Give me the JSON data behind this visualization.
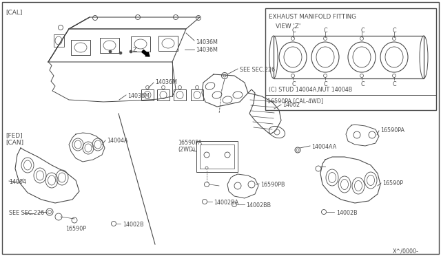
{
  "bg_color": "#ffffff",
  "line_color": "#4a4a4a",
  "box_bg": "#ffffff",
  "labels": {
    "cal_tag": "[CAL]",
    "fed_can_tag": "[FED]\n[CAN]",
    "view_z_title": "EXHAUST MANIFOLD FITTING",
    "view_z_sub": "VIEW 'Z'",
    "view_z_note": "(C) STUD 14004A,NUT 14004B",
    "cal_4wd": "16590PA [CAL-4WD]",
    "part_14036M_a": "14036M",
    "part_14036M_b": "14036M",
    "part_14036M_c": "14036M",
    "part_14036M_d": "14036M",
    "part_Z": "Z",
    "part_14002": "14002",
    "part_14002B_l": "14002B",
    "part_14002B_r": "14002B",
    "part_14002BA": "14002BA",
    "part_14002BB": "14002BB",
    "part_14004": "14004",
    "part_14004A": "14004A",
    "part_14004AA": "14004AA",
    "part_16590P_l": "16590P",
    "part_16590P_r": "16590P",
    "part_16590PA_2wd": "16590PA\n(2WD)",
    "part_16590PA": "16590PA",
    "part_16590PB": "16590PB",
    "see_sec226_t": "SEE SEC.226",
    "see_sec226_b": "SEE SEC.226",
    "watermark": "X^/0000-"
  },
  "fs": 6.5,
  "fs_s": 5.8,
  "fs_l": 7.5
}
